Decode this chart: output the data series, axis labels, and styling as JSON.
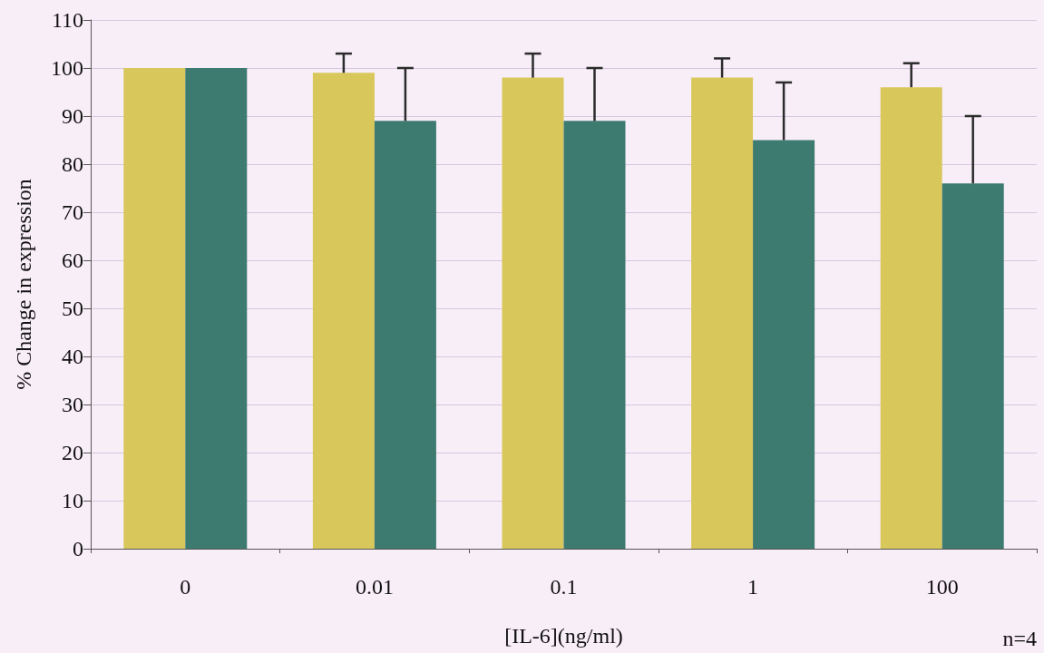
{
  "chart_data": {
    "type": "bar",
    "xlabel": "[IL-6](ng/ml)",
    "ylabel": "% Change in expression",
    "categories": [
      "0",
      "0.01",
      "0.1",
      "1",
      "100"
    ],
    "series": [
      {
        "color": "#d8c75a",
        "values": [
          100,
          99,
          98,
          98,
          96
        ],
        "errors": [
          null,
          [
            99,
            103
          ],
          [
            98,
            103
          ],
          [
            98,
            102
          ],
          [
            96,
            101
          ]
        ]
      },
      {
        "color": "#3d7a70",
        "values": [
          100,
          89,
          89,
          85,
          76
        ],
        "errors": [
          null,
          [
            89,
            100
          ],
          [
            89,
            100
          ],
          [
            85,
            97
          ],
          [
            76,
            90
          ]
        ]
      }
    ],
    "ylim": [
      0,
      110
    ],
    "yticks": [
      0,
      10,
      20,
      30,
      40,
      50,
      60,
      70,
      80,
      90,
      100,
      110
    ],
    "grid": "y",
    "annotations": [
      "n=4"
    ]
  }
}
